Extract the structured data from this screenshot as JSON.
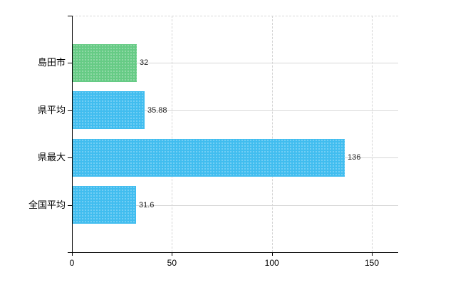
{
  "chart_data": {
    "type": "bar",
    "orientation": "horizontal",
    "title": "",
    "categories": [
      "島田市",
      "県平均",
      "県最大",
      "全国平均"
    ],
    "values": [
      32,
      35.88,
      136,
      31.6
    ],
    "value_labels": [
      "32",
      "35.88",
      "136",
      "31.6"
    ],
    "bar_colors": [
      "#66cb85",
      "#41bdef",
      "#41bdef",
      "#41bdef"
    ],
    "x_ticks": [
      0,
      50,
      100,
      150
    ],
    "x_tick_labels": [
      "0",
      "50",
      "100",
      "150"
    ],
    "xlim": [
      0,
      163
    ],
    "grid": true,
    "legend": false,
    "highlight_category": "島田市"
  },
  "colors": {
    "background": "#ffffff",
    "axis": "#000000",
    "gridline": "#d8d8d8",
    "bar_green": "#66cb85",
    "bar_blue": "#41bdef",
    "text": "#000000",
    "value_text": "#222222"
  }
}
